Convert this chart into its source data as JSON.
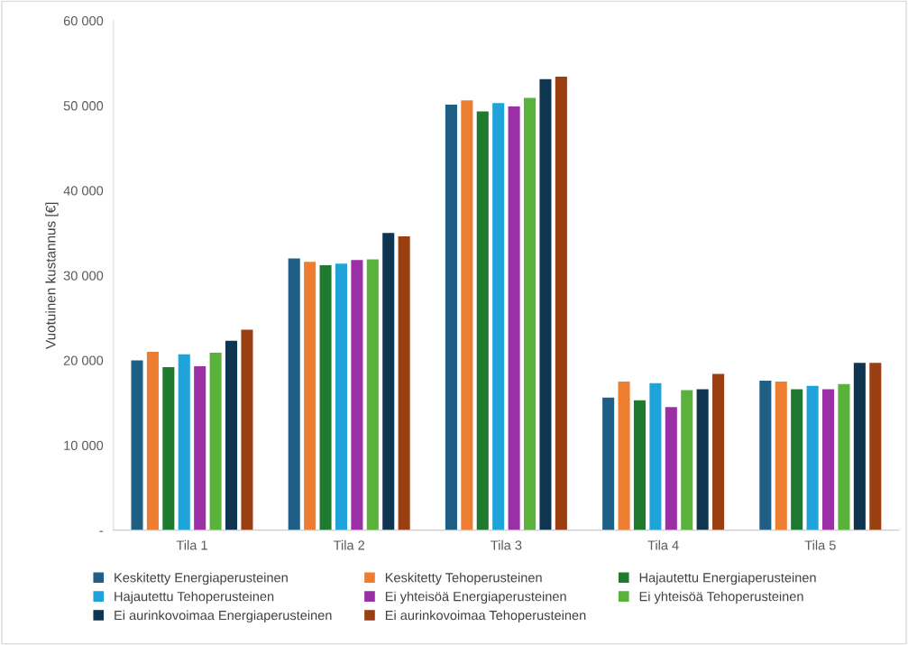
{
  "chart_data": {
    "type": "bar",
    "ylabel": "Vuotuinen kustannus [€]",
    "categories": [
      "Tila 1",
      "Tila 2",
      "Tila 3",
      "Tila 4",
      "Tila 5"
    ],
    "ylim": [
      0,
      60000
    ],
    "yticks": [
      {
        "value": 0,
        "label": "-"
      },
      {
        "value": 10000,
        "label": "10 000"
      },
      {
        "value": 20000,
        "label": "20 000"
      },
      {
        "value": 30000,
        "label": "30 000"
      },
      {
        "value": 40000,
        "label": "40 000"
      },
      {
        "value": 50000,
        "label": "50 000"
      },
      {
        "value": 60000,
        "label": "60 000"
      }
    ],
    "grid": false,
    "legend": "bottom",
    "series": [
      {
        "name": "Keskitetty Energiaperusteinen",
        "color": "#1f5f86",
        "values": [
          20000,
          32000,
          50100,
          15600,
          17600
        ]
      },
      {
        "name": "Keskitetty Tehoperusteinen",
        "color": "#ed7d31",
        "values": [
          21000,
          31600,
          50600,
          17500,
          17500
        ]
      },
      {
        "name": "Hajautettu Energiaperusteinen",
        "color": "#1e7a2e",
        "values": [
          19200,
          31200,
          49300,
          15300,
          16600
        ]
      },
      {
        "name": "Hajautettu Tehoperusteinen",
        "color": "#1fa3d9",
        "values": [
          20700,
          31400,
          50300,
          17300,
          17000
        ]
      },
      {
        "name": "Ei yhteisöä Energiaperusteinen",
        "color": "#9b2fa5",
        "values": [
          19300,
          31800,
          49900,
          14500,
          16600
        ]
      },
      {
        "name": "Ei yhteisöä Tehoperusteinen",
        "color": "#59b23a",
        "values": [
          20900,
          31900,
          50900,
          16500,
          17200
        ]
      },
      {
        "name": "Ei aurinkovoimaa Energiaperusteinen",
        "color": "#0f3550",
        "values": [
          22300,
          35000,
          53100,
          16600,
          19700
        ]
      },
      {
        "name": "Ei aurinkovoimaa Tehoperusteinen",
        "color": "#9a3f12",
        "values": [
          23600,
          34600,
          53400,
          18400,
          19700
        ]
      }
    ]
  }
}
